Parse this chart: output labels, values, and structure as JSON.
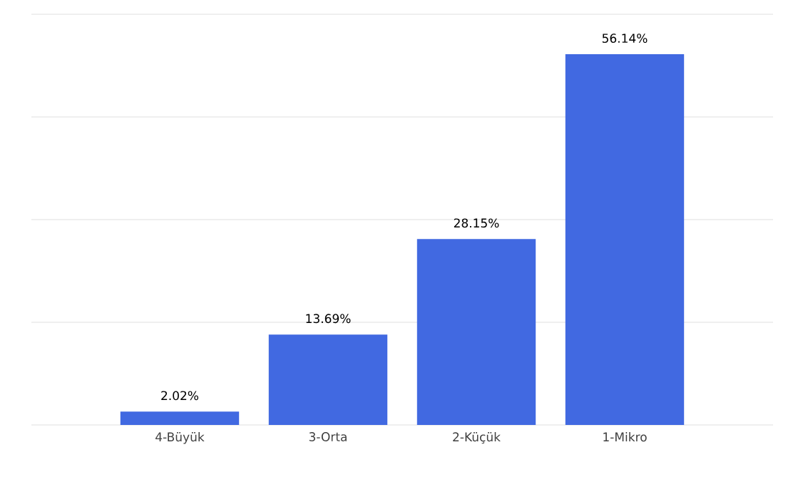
{
  "chart_data": {
    "type": "bar",
    "categories": [
      "4-Büyük",
      "3-Orta",
      "2-Küçük",
      "1-Mikro"
    ],
    "values": [
      2.02,
      13.69,
      28.15,
      56.14
    ],
    "value_labels": [
      "2.02%",
      "13.69%",
      "28.15%",
      "56.14%"
    ],
    "color": "#4169e1",
    "ylim": [
      0,
      62.2
    ],
    "yticks": [
      {
        "value": 0,
        "label": null
      },
      {
        "value": 15.55,
        "label": null
      },
      {
        "value": 31.1,
        "label": null
      },
      {
        "value": 46.65,
        "label": null
      },
      {
        "value": 62.2,
        "label": null
      }
    ],
    "grid": "y",
    "tick_labels": "x"
  }
}
